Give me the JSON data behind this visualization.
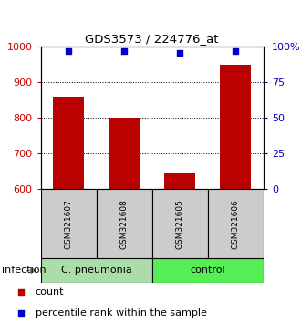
{
  "title": "GDS3573 / 224776_at",
  "samples": [
    "GSM321607",
    "GSM321608",
    "GSM321605",
    "GSM321606"
  ],
  "counts": [
    860,
    800,
    645,
    950
  ],
  "percentile_ranks": [
    97,
    97,
    96,
    97
  ],
  "ylim_left": [
    600,
    1000
  ],
  "ylim_right": [
    0,
    100
  ],
  "yticks_left": [
    600,
    700,
    800,
    900,
    1000
  ],
  "yticks_right": [
    0,
    25,
    50,
    75,
    100
  ],
  "bar_color": "#bb0000",
  "dot_color": "#0000cc",
  "groups": [
    {
      "label": "C. pneumonia",
      "indices": [
        0,
        1
      ],
      "color": "#aaddaa"
    },
    {
      "label": "control",
      "indices": [
        2,
        3
      ],
      "color": "#55ee55"
    }
  ],
  "group_factor_label": "infection",
  "legend_count_label": "count",
  "legend_pct_label": "percentile rank within the sample",
  "sample_box_color": "#cccccc",
  "left_tick_color": "#cc0000",
  "right_tick_color": "#0000bb",
  "title_fontsize": 9.5,
  "tick_fontsize": 8,
  "sample_fontsize": 6.5,
  "group_fontsize": 8,
  "legend_fontsize": 8
}
